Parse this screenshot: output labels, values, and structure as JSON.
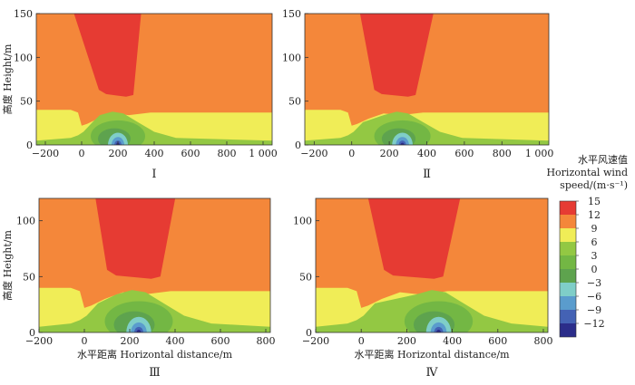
{
  "chart_data": {
    "type": "filled-contour",
    "panels": [
      {
        "label": "Ⅰ",
        "ylabel": "高度 Height/m",
        "xlabel": "",
        "xlim": [
          -250,
          1050
        ],
        "ylim": [
          0,
          150
        ],
        "xticks": [
          -200,
          0,
          200,
          400,
          600,
          800,
          1000
        ],
        "xtick_labels": [
          "−200",
          "0",
          "200",
          "400",
          "600",
          "800",
          "1 000"
        ],
        "yticks": [
          0,
          50,
          100,
          150
        ],
        "jet_core": {
          "x_top": [
            -50,
            330
          ],
          "x_bottom": [
            95,
            285
          ],
          "bottom_height": 55
        },
        "low_speed_center": {
          "x": 200,
          "height": 3
        }
      },
      {
        "label": "Ⅱ",
        "ylabel": "",
        "xlabel": "",
        "xlim": [
          -250,
          1050
        ],
        "ylim": [
          0,
          150
        ],
        "xticks": [
          -200,
          0,
          200,
          400,
          600,
          800,
          1000
        ],
        "xtick_labels": [
          "−200",
          "0",
          "200",
          "400",
          "600",
          "800",
          "1 000"
        ],
        "yticks": [
          0,
          50,
          100,
          150
        ],
        "jet_core": {
          "x_top": [
            40,
            440
          ],
          "x_bottom": [
            120,
            340
          ],
          "bottom_height": 55
        },
        "low_speed_center": {
          "x": 270,
          "height": 3
        }
      },
      {
        "label": "Ⅲ",
        "ylabel": "高度 Height/m",
        "xlabel": "水平距离 Horizontal distance/m",
        "xlim": [
          -200,
          820
        ],
        "ylim": [
          0,
          120
        ],
        "xticks": [
          -200,
          0,
          200,
          400,
          600,
          800
        ],
        "xtick_labels": [
          "−200",
          "0",
          "200",
          "400",
          "600",
          "800"
        ],
        "yticks": [
          0,
          50,
          100
        ],
        "jet_core": {
          "x_top": [
            45,
            405
          ],
          "x_bottom": [
            100,
            335
          ],
          "bottom_height": 48
        },
        "low_speed_center": {
          "x": 240,
          "height": 3
        }
      },
      {
        "label": "Ⅳ",
        "ylabel": "",
        "xlabel": "水平距离 Horizontal distance/m",
        "xlim": [
          -200,
          820
        ],
        "ylim": [
          0,
          120
        ],
        "xticks": [
          -200,
          0,
          200,
          400,
          600,
          800
        ],
        "xtick_labels": [
          "−200",
          "0",
          "200",
          "400",
          "600",
          "800"
        ],
        "yticks": [
          0,
          50,
          100
        ],
        "jet_core": {
          "x_top": [
            25,
            440
          ],
          "x_bottom": [
            100,
            360
          ],
          "bottom_height": 48
        },
        "low_speed_center": {
          "x": 340,
          "height": 3
        }
      }
    ],
    "colorbar": {
      "title": [
        "水平风速值",
        "Horizontal wind",
        "speed/(m·s⁻¹)"
      ],
      "levels": [
        15,
        12,
        9,
        6,
        3,
        0,
        -3,
        -6,
        -9,
        -12
      ],
      "level_labels": [
        "15",
        "12",
        "9",
        "6",
        "3",
        "0",
        "−3",
        "−6",
        "−9",
        "−12"
      ],
      "colors": [
        "#e63b33",
        "#f4873a",
        "#f0ed57",
        "#93c843",
        "#73b744",
        "#5ea34e",
        "#7fcec8",
        "#5a9ccd",
        "#4462b4",
        "#2b2d8a"
      ]
    }
  }
}
